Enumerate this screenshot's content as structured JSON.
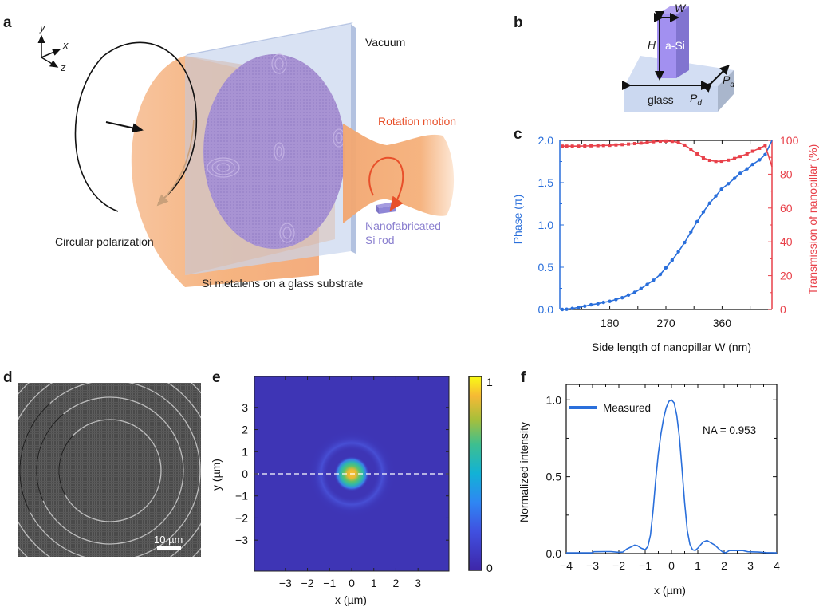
{
  "panels": {
    "a": {
      "label": "a",
      "axes": {
        "y": "y",
        "x": "x",
        "z": "z"
      },
      "vacuum": "Vacuum",
      "rotation": "Rotation motion",
      "rod_line1": "Nanofabricated",
      "rod_line2": "Si rod",
      "circular": "Circular polarization",
      "substrate": "Si metalens on a glass substrate",
      "colors": {
        "beam": "#f5b07a",
        "glass": "#c9d6ee",
        "lens": "#a58fd0",
        "rotation": "#e8502a",
        "rod_text": "#8a7fcf"
      }
    },
    "b": {
      "label": "b",
      "w": "W",
      "h": "H",
      "material": "a-Si",
      "glass": "glass",
      "pd": "P",
      "pd_sub": "d"
    },
    "d": {
      "label": "d",
      "scalebar": "10 µm"
    },
    "e": {
      "label": "e",
      "colorbar_max": "1",
      "colorbar_min": "0"
    },
    "f": {
      "label": "f"
    }
  },
  "chart_data": [
    {
      "id": "c",
      "type": "line",
      "label": "c",
      "xlabel": "Side length of nanopillar W (nm)",
      "ylabel_left": "Phase (π)",
      "ylabel_right": "Transmission of nanopillar (%)",
      "xlim": [
        100,
        440
      ],
      "ylim_left": [
        0,
        2.0
      ],
      "ylim_right": [
        0,
        100
      ],
      "x_ticks": [
        "180",
        "270",
        "360"
      ],
      "x_tick_values": [
        180,
        270,
        360
      ],
      "y_ticks_left": [
        "0.0",
        "0.5",
        "1.0",
        "1.5",
        "2.0"
      ],
      "y_ticks_right": [
        "0",
        "20",
        "40",
        "60",
        "80",
        "100"
      ],
      "series": [
        {
          "name": "Phase",
          "axis": "left",
          "color": "#2a6fdb",
          "x": [
            104,
            111,
            120,
            130,
            140,
            150,
            161,
            170,
            180,
            190,
            200,
            210,
            220,
            230,
            240,
            250,
            261,
            270,
            280,
            290,
            300,
            310,
            320,
            330,
            340,
            350,
            359,
            370,
            380,
            389,
            400,
            409,
            420,
            429
          ],
          "y": [
            0.0,
            0.003,
            0.012,
            0.025,
            0.04,
            0.056,
            0.069,
            0.084,
            0.097,
            0.119,
            0.14,
            0.172,
            0.203,
            0.247,
            0.296,
            0.346,
            0.415,
            0.493,
            0.583,
            0.683,
            0.792,
            0.917,
            1.039,
            1.154,
            1.257,
            1.342,
            1.423,
            1.488,
            1.551,
            1.61,
            1.663,
            1.716,
            1.769,
            1.832
          ],
          "end_point": [
            440,
            2.0
          ]
        },
        {
          "name": "Transmission",
          "axis": "right",
          "color": "#e8414a",
          "x": [
            104,
            111,
            120,
            130,
            140,
            150,
            161,
            170,
            180,
            190,
            200,
            210,
            220,
            230,
            240,
            250,
            261,
            270,
            280,
            290,
            300,
            310,
            320,
            330,
            340,
            350,
            359,
            370,
            380,
            389,
            400,
            409,
            420,
            429
          ],
          "y": [
            96.6,
            96.6,
            96.6,
            96.6,
            96.7,
            96.8,
            96.9,
            97.0,
            97.1,
            97.3,
            97.5,
            97.8,
            98.1,
            98.4,
            98.8,
            99.2,
            99.5,
            99.6,
            99.4,
            98.8,
            97.2,
            94.8,
            92.0,
            89.6,
            88.2,
            87.6,
            87.7,
            88.3,
            89.3,
            90.5,
            92.0,
            93.6,
            95.3,
            97.0
          ],
          "end_point": [
            440,
            84.5
          ]
        }
      ]
    },
    {
      "id": "e",
      "type": "heatmap",
      "label": "e",
      "xlabel": "x (µm)",
      "ylabel": "y (µm)",
      "xlim": [
        -4.4,
        4.4
      ],
      "ylim": [
        -4.4,
        4.4
      ],
      "x_ticks": [
        "−3",
        "−2",
        "−1",
        "0",
        "1",
        "2",
        "3"
      ],
      "x_tick_values": [
        -3,
        -2,
        -1,
        0,
        1,
        2,
        3
      ],
      "y_ticks": [
        "3",
        "2",
        "1",
        "0",
        "−1",
        "−2",
        "−3"
      ],
      "y_tick_values": [
        3,
        2,
        1,
        0,
        -1,
        -2,
        -3
      ],
      "colorbar": {
        "min": 0,
        "max": 1,
        "colormap": "parula"
      },
      "description": "Focal spot peak at (0,0) with faint rings; dashed white line at y=0"
    },
    {
      "id": "f",
      "type": "line",
      "label": "f",
      "xlabel": "x (µm)",
      "ylabel": "Normalized intensity",
      "xlim": [
        -4,
        4
      ],
      "ylim": [
        0,
        1.1
      ],
      "x_ticks": [
        "−4",
        "−3",
        "−2",
        "−1",
        "0",
        "1",
        "2",
        "3",
        "4"
      ],
      "x_tick_values": [
        -4,
        -3,
        -2,
        -1,
        0,
        1,
        2,
        3,
        4
      ],
      "y_ticks": [
        "0.0",
        "0.5",
        "1.0"
      ],
      "y_tick_values": [
        0,
        0.5,
        1.0
      ],
      "legend": [
        {
          "name": "Measured",
          "color": "#2a6fdb"
        }
      ],
      "legend_position": "top-left",
      "annotation": "NA = 0.953",
      "series": [
        {
          "name": "Measured",
          "color": "#2a6fdb",
          "x": [
            -4,
            -3.5,
            -3.0,
            -2.95,
            -2.5,
            -2.3,
            -2.0,
            -1.85,
            -1.7,
            -1.55,
            -1.4,
            -1.3,
            -1.15,
            -1.0,
            -0.9,
            -0.8,
            -0.7,
            -0.6,
            -0.5,
            -0.4,
            -0.3,
            -0.2,
            -0.1,
            0.0,
            0.1,
            0.2,
            0.3,
            0.4,
            0.5,
            0.6,
            0.7,
            0.8,
            0.9,
            1.0,
            1.1,
            1.2,
            1.35,
            1.5,
            1.65,
            1.8,
            1.95,
            2.05,
            2.2,
            2.4,
            2.7,
            2.9,
            3.3,
            3.6,
            4.0
          ],
          "y": [
            0.005,
            0.005,
            0.005,
            0.012,
            0.013,
            0.013,
            0.008,
            0.01,
            0.03,
            0.042,
            0.055,
            0.052,
            0.035,
            0.025,
            0.045,
            0.12,
            0.28,
            0.48,
            0.65,
            0.78,
            0.88,
            0.95,
            0.99,
            1.0,
            0.98,
            0.9,
            0.76,
            0.55,
            0.33,
            0.15,
            0.06,
            0.025,
            0.02,
            0.035,
            0.055,
            0.075,
            0.085,
            0.07,
            0.055,
            0.03,
            0.01,
            0.005,
            0.02,
            0.02,
            0.02,
            0.012,
            0.01,
            0.006,
            0.005
          ]
        }
      ]
    }
  ]
}
